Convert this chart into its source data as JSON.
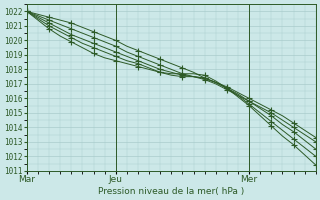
{
  "background_color": "#cce8e8",
  "grid_color": "#aacccc",
  "line_color": "#2d5a27",
  "text_color": "#2d5a27",
  "xlabel_text": "Pression niveau de la mer( hPa )",
  "xtick_labels": [
    "Mar",
    "Jeu",
    "Mer"
  ],
  "xtick_positions": [
    0.0,
    2.0,
    5.0
  ],
  "xlim": [
    0,
    6.5
  ],
  "ylim": [
    1011,
    1022.5
  ],
  "yticks": [
    1011,
    1012,
    1013,
    1014,
    1015,
    1016,
    1017,
    1018,
    1019,
    1020,
    1021,
    1022
  ],
  "x_days": [
    0.0,
    0.25,
    0.5,
    0.75,
    1.0,
    1.25,
    1.5,
    1.75,
    2.0,
    2.25,
    2.5,
    2.75,
    3.0,
    3.25,
    3.5,
    3.75,
    4.0,
    4.25,
    4.5,
    4.75,
    5.0,
    5.25,
    5.5,
    5.75,
    6.0,
    6.25,
    6.5
  ],
  "lines": [
    [
      1022.0,
      1021.8,
      1021.6,
      1021.4,
      1021.2,
      1020.9,
      1020.6,
      1020.3,
      1020.0,
      1019.6,
      1019.3,
      1019.0,
      1018.7,
      1018.4,
      1018.1,
      1017.8,
      1017.4,
      1017.1,
      1016.8,
      1016.4,
      1016.0,
      1015.6,
      1015.2,
      1014.8,
      1014.3,
      1013.8,
      1013.3
    ],
    [
      1022.0,
      1021.7,
      1021.4,
      1021.1,
      1020.8,
      1020.5,
      1020.2,
      1019.9,
      1019.6,
      1019.2,
      1018.9,
      1018.6,
      1018.3,
      1018.0,
      1017.7,
      1017.5,
      1017.3,
      1017.0,
      1016.6,
      1016.2,
      1015.8,
      1015.4,
      1015.0,
      1014.5,
      1014.0,
      1013.5,
      1013.0
    ],
    [
      1022.0,
      1021.6,
      1021.2,
      1020.8,
      1020.4,
      1020.1,
      1019.8,
      1019.5,
      1019.2,
      1018.9,
      1018.6,
      1018.3,
      1018.0,
      1017.8,
      1017.6,
      1017.5,
      1017.4,
      1017.1,
      1016.7,
      1016.3,
      1015.8,
      1015.3,
      1014.8,
      1014.2,
      1013.7,
      1013.1,
      1012.5
    ],
    [
      1022.0,
      1021.5,
      1021.0,
      1020.6,
      1020.2,
      1019.8,
      1019.5,
      1019.2,
      1018.9,
      1018.6,
      1018.4,
      1018.1,
      1017.8,
      1017.6,
      1017.5,
      1017.5,
      1017.4,
      1017.1,
      1016.7,
      1016.2,
      1015.6,
      1015.0,
      1014.4,
      1013.8,
      1013.2,
      1012.6,
      1012.0
    ],
    [
      1022.0,
      1021.4,
      1020.8,
      1020.3,
      1019.9,
      1019.5,
      1019.1,
      1018.8,
      1018.6,
      1018.4,
      1018.2,
      1018.0,
      1017.8,
      1017.7,
      1017.7,
      1017.7,
      1017.6,
      1017.2,
      1016.7,
      1016.1,
      1015.5,
      1014.8,
      1014.1,
      1013.4,
      1012.8,
      1012.1,
      1011.4
    ]
  ],
  "marker_every": [
    2,
    2,
    2,
    2,
    2
  ]
}
